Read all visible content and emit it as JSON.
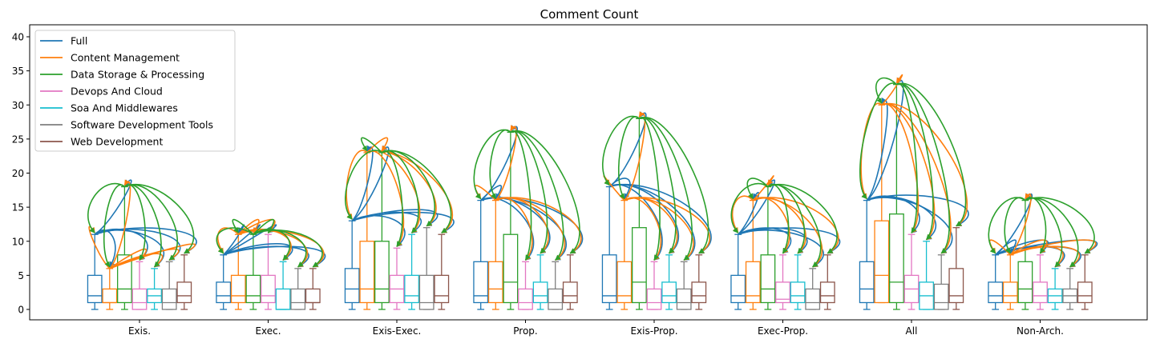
{
  "chart_data": {
    "type": "box",
    "title": "Comment Count",
    "xlabel": "",
    "ylabel": "",
    "ylim": [
      -1.9,
      41.5
    ],
    "yticks": [
      0,
      5,
      10,
      15,
      20,
      25,
      30,
      35,
      40
    ],
    "grid": false,
    "legend_position": "top-left",
    "categories": [
      "Exis.",
      "Exec.",
      "Exis-Exec.",
      "Prop.",
      "Exis-Prop.",
      "Exec-Prop.",
      "All",
      "Non-Arch."
    ],
    "series": [
      {
        "name": "Full",
        "color": "#1f77b4",
        "boxes": [
          {
            "whislo": 0,
            "q1": 1,
            "med": 2,
            "q3": 5,
            "whishi": 11
          },
          {
            "whislo": 0,
            "q1": 1,
            "med": 2,
            "q3": 4,
            "whishi": 8
          },
          {
            "whislo": 0,
            "q1": 1,
            "med": 3,
            "q3": 6,
            "whishi": 13
          },
          {
            "whislo": 0,
            "q1": 1,
            "med": 2,
            "q3": 7,
            "whishi": 16
          },
          {
            "whislo": 0,
            "q1": 1,
            "med": 2,
            "q3": 8,
            "whishi": 18
          },
          {
            "whislo": 0,
            "q1": 1,
            "med": 2,
            "q3": 5,
            "whishi": 11
          },
          {
            "whislo": 0,
            "q1": 1,
            "med": 3,
            "q3": 7,
            "whishi": 16
          },
          {
            "whislo": 0,
            "q1": 1,
            "med": 2,
            "q3": 4,
            "whishi": 8
          }
        ]
      },
      {
        "name": "Content Management",
        "color": "#ff7f0e",
        "boxes": [
          {
            "whislo": 0,
            "q1": 1,
            "med": 1,
            "q3": 3,
            "whishi": 6
          },
          {
            "whislo": 0,
            "q1": 1,
            "med": 2,
            "q3": 5,
            "whishi": 11
          },
          {
            "whislo": 0,
            "q1": 1,
            "med": 3,
            "q3": 10,
            "whishi": 23
          },
          {
            "whislo": 0,
            "q1": 1,
            "med": 3,
            "q3": 7,
            "whishi": 16
          },
          {
            "whislo": 0,
            "q1": 1,
            "med": 2,
            "q3": 7,
            "whishi": 16
          },
          {
            "whislo": 0,
            "q1": 1,
            "med": 2,
            "q3": 7,
            "whishi": 16
          },
          {
            "whislo": 1,
            "q1": 1,
            "med": 5,
            "q3": 13,
            "whishi": 30
          },
          {
            "whislo": 0,
            "q1": 1,
            "med": 2,
            "q3": 4,
            "whishi": 8
          }
        ]
      },
      {
        "name": "Data Storage & Processing",
        "color": "#2ca02c",
        "boxes": [
          {
            "whislo": 0,
            "q1": 1,
            "med": 3,
            "q3": 8,
            "whishi": 18
          },
          {
            "whislo": 0,
            "q1": 1,
            "med": 2,
            "q3": 5,
            "whishi": 11
          },
          {
            "whislo": 0,
            "q1": 1,
            "med": 3,
            "q3": 10,
            "whishi": 23
          },
          {
            "whislo": 0,
            "q1": 1,
            "med": 4,
            "q3": 11,
            "whishi": 26
          },
          {
            "whislo": 0,
            "q1": 1,
            "med": 4,
            "q3": 12,
            "whishi": 28
          },
          {
            "whislo": 0,
            "q1": 1,
            "med": 3,
            "q3": 8,
            "whishi": 18
          },
          {
            "whislo": 0,
            "q1": 1,
            "med": 4,
            "q3": 14,
            "whishi": 33
          },
          {
            "whislo": 0,
            "q1": 1,
            "med": 3,
            "q3": 7,
            "whishi": 16
          }
        ]
      },
      {
        "name": "Devops And Cloud",
        "color": "#e377c2",
        "boxes": [
          {
            "whislo": 0,
            "q1": 0,
            "med": 1,
            "q3": 3,
            "whishi": 7
          },
          {
            "whislo": 0,
            "q1": 1,
            "med": 2,
            "q3": 5,
            "whishi": 11
          },
          {
            "whislo": 0,
            "q1": 1,
            "med": 3,
            "q3": 5,
            "whishi": 9
          },
          {
            "whislo": 0,
            "q1": 0,
            "med": 1,
            "q3": 3,
            "whishi": 7
          },
          {
            "whislo": 0,
            "q1": 0,
            "med": 1,
            "q3": 3,
            "whishi": 7
          },
          {
            "whislo": 0,
            "q1": 1,
            "med": 1.5,
            "q3": 4,
            "whishi": 8
          },
          {
            "whislo": 0,
            "q1": 1,
            "med": 3,
            "q3": 5,
            "whishi": 11
          },
          {
            "whislo": 0,
            "q1": 1,
            "med": 2,
            "q3": 4,
            "whishi": 8
          }
        ]
      },
      {
        "name": "Soa And Middlewares",
        "color": "#17becf",
        "boxes": [
          {
            "whislo": 0,
            "q1": 1,
            "med": 2,
            "q3": 3,
            "whishi": 6
          },
          {
            "whislo": 0,
            "q1": 0,
            "med": 0,
            "q3": 3,
            "whishi": 7
          },
          {
            "whislo": 0,
            "q1": 1,
            "med": 2,
            "q3": 5,
            "whishi": 11
          },
          {
            "whislo": 0,
            "q1": 1,
            "med": 2,
            "q3": 4,
            "whishi": 8
          },
          {
            "whislo": 0,
            "q1": 1,
            "med": 2,
            "q3": 4,
            "whishi": 8
          },
          {
            "whislo": 0,
            "q1": 1,
            "med": 2,
            "q3": 4,
            "whishi": 8
          },
          {
            "whislo": 0,
            "q1": 0,
            "med": 2,
            "q3": 4,
            "whishi": 10
          },
          {
            "whislo": 0,
            "q1": 1,
            "med": 2,
            "q3": 3,
            "whishi": 6
          }
        ]
      },
      {
        "name": "Software Development Tools",
        "color": "#7f7f7f",
        "boxes": [
          {
            "whislo": 0,
            "q1": 0,
            "med": 1,
            "q3": 3,
            "whishi": 7
          },
          {
            "whislo": 0,
            "q1": 0,
            "med": 1,
            "q3": 3,
            "whishi": 6
          },
          {
            "whislo": 0,
            "q1": 0,
            "med": 1,
            "q3": 5,
            "whishi": 12
          },
          {
            "whislo": 0,
            "q1": 0,
            "med": 1,
            "q3": 3,
            "whishi": 7
          },
          {
            "whislo": 0,
            "q1": 0,
            "med": 1,
            "q3": 3,
            "whishi": 7
          },
          {
            "whislo": 0,
            "q1": 0,
            "med": 1,
            "q3": 3,
            "whishi": 6
          },
          {
            "whislo": 0,
            "q1": 0,
            "med": 1,
            "q3": 3.7,
            "whishi": 8
          },
          {
            "whislo": 0,
            "q1": 1,
            "med": 2,
            "q3": 3,
            "whishi": 6
          }
        ]
      },
      {
        "name": "Web Development",
        "color": "#8c564b",
        "boxes": [
          {
            "whislo": 0,
            "q1": 1,
            "med": 2,
            "q3": 4,
            "whishi": 8
          },
          {
            "whislo": 0,
            "q1": 1,
            "med": 1,
            "q3": 3,
            "whishi": 6
          },
          {
            "whislo": 0,
            "q1": 1,
            "med": 2,
            "q3": 5,
            "whishi": 11
          },
          {
            "whislo": 0,
            "q1": 1,
            "med": 2,
            "q3": 4,
            "whishi": 8
          },
          {
            "whislo": 0,
            "q1": 1,
            "med": 2,
            "q3": 4,
            "whishi": 8
          },
          {
            "whislo": 0,
            "q1": 1,
            "med": 2,
            "q3": 4,
            "whishi": 8
          },
          {
            "whislo": 0,
            "q1": 1,
            "med": 2,
            "q3": 6,
            "whishi": 12
          },
          {
            "whislo": 0,
            "q1": 1,
            "med": 2,
            "q3": 4,
            "whishi": 8
          }
        ]
      }
    ],
    "annotations": "Curved arrows drawn from the top whisker of each Full, Content Management and Data Storage & Processing box to the top whiskers of the boxes of every other series in the same category."
  }
}
